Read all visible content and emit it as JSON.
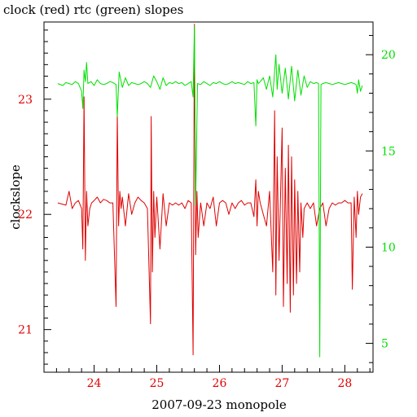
{
  "chart_data": {
    "type": "line",
    "title": "clock (red) rtc (green) slopes",
    "xlabel": "2007-09-23 monopole",
    "ylabel": "clockslope",
    "xlim": [
      23.2,
      28.45
    ],
    "ylim_left": [
      20.63,
      23.67
    ],
    "ylim_right": [
      3.5,
      21.7
    ],
    "x_ticks": [
      24,
      25,
      26,
      27,
      28
    ],
    "y_ticks_left": [
      21,
      22,
      23
    ],
    "y_ticks_right": [
      5,
      10,
      15,
      20
    ],
    "colors": {
      "clock": "#e00000",
      "rtc": "#00e000",
      "axes": "#000000"
    },
    "series": [
      {
        "name": "clock",
        "axis": "left",
        "color": "#e00000",
        "x": [
          23.42,
          23.55,
          23.6,
          23.65,
          23.7,
          23.75,
          23.8,
          23.82,
          23.84,
          23.86,
          23.88,
          23.9,
          23.93,
          23.96,
          24.0,
          24.05,
          24.1,
          24.15,
          24.2,
          24.25,
          24.3,
          24.35,
          24.37,
          24.39,
          24.41,
          24.43,
          24.45,
          24.5,
          24.55,
          24.6,
          24.65,
          24.7,
          24.75,
          24.8,
          24.85,
          24.9,
          24.91,
          24.93,
          24.95,
          24.97,
          25.0,
          25.05,
          25.1,
          25.15,
          25.2,
          25.25,
          25.3,
          25.35,
          25.4,
          25.45,
          25.5,
          25.55,
          25.58,
          25.6,
          25.62,
          25.64,
          25.66,
          25.7,
          25.75,
          25.8,
          25.85,
          25.9,
          25.95,
          26.0,
          26.05,
          26.1,
          26.15,
          26.2,
          26.25,
          26.3,
          26.35,
          26.4,
          26.45,
          26.5,
          26.55,
          26.58,
          26.6,
          26.62,
          26.65,
          26.7,
          26.75,
          26.8,
          26.85,
          26.88,
          26.9,
          26.92,
          26.95,
          27.0,
          27.02,
          27.05,
          27.08,
          27.1,
          27.13,
          27.15,
          27.18,
          27.2,
          27.23,
          27.25,
          27.28,
          27.3,
          27.33,
          27.35,
          27.4,
          27.45,
          27.5,
          27.55,
          27.6,
          27.65,
          27.7,
          27.75,
          27.8,
          27.85,
          27.9,
          27.95,
          28.0,
          28.05,
          28.1,
          28.12,
          28.15,
          28.18,
          28.2,
          28.22,
          28.25,
          28.28
        ],
        "y": [
          22.1,
          22.08,
          22.2,
          22.05,
          22.1,
          22.12,
          22.05,
          21.7,
          23.02,
          21.6,
          22.2,
          21.9,
          22.05,
          22.1,
          22.12,
          22.15,
          22.1,
          22.13,
          22.12,
          22.1,
          22.1,
          21.2,
          22.88,
          21.9,
          22.2,
          22.05,
          22.15,
          21.9,
          22.18,
          22.0,
          22.1,
          22.15,
          22.12,
          22.1,
          22.05,
          21.05,
          22.85,
          21.5,
          22.2,
          21.8,
          22.15,
          21.7,
          22.18,
          21.9,
          22.1,
          22.08,
          22.1,
          22.08,
          22.1,
          22.05,
          22.12,
          22.1,
          20.78,
          23.65,
          21.65,
          22.2,
          21.8,
          22.1,
          21.9,
          22.1,
          22.05,
          22.15,
          21.9,
          22.1,
          22.12,
          22.1,
          22.0,
          22.1,
          22.05,
          22.1,
          22.12,
          22.08,
          22.1,
          22.1,
          21.98,
          22.3,
          21.9,
          22.2,
          22.1,
          22.0,
          21.9,
          22.2,
          21.5,
          22.9,
          21.3,
          22.5,
          21.6,
          22.75,
          21.2,
          22.4,
          21.4,
          22.6,
          21.15,
          22.5,
          21.3,
          22.3,
          21.4,
          22.2,
          21.5,
          22.1,
          21.8,
          22.05,
          22.1,
          22.05,
          22.1,
          21.9,
          22.05,
          22.1,
          21.9,
          22.05,
          22.1,
          22.08,
          22.1,
          22.1,
          22.12,
          22.1,
          22.1,
          21.35,
          22.15,
          21.8,
          22.2,
          22.0,
          22.15,
          22.18
        ]
      },
      {
        "name": "rtc",
        "axis": "right",
        "color": "#00e000",
        "x": [
          23.42,
          23.5,
          23.55,
          23.6,
          23.65,
          23.7,
          23.75,
          23.8,
          23.82,
          23.84,
          23.86,
          23.88,
          23.9,
          23.95,
          24.0,
          24.05,
          24.1,
          24.15,
          24.2,
          24.25,
          24.3,
          24.35,
          24.37,
          24.4,
          24.45,
          24.5,
          24.55,
          24.6,
          24.65,
          24.7,
          24.75,
          24.8,
          24.85,
          24.9,
          24.95,
          25.0,
          25.05,
          25.1,
          25.15,
          25.2,
          25.25,
          25.3,
          25.35,
          25.4,
          25.45,
          25.5,
          25.55,
          25.58,
          25.6,
          25.62,
          25.65,
          25.7,
          25.75,
          25.8,
          25.85,
          25.9,
          25.95,
          26.0,
          26.05,
          26.1,
          26.15,
          26.2,
          26.25,
          26.3,
          26.35,
          26.4,
          26.45,
          26.5,
          26.55,
          26.58,
          26.6,
          26.62,
          26.65,
          26.7,
          26.75,
          26.8,
          26.85,
          26.9,
          26.92,
          26.95,
          27.0,
          27.05,
          27.1,
          27.15,
          27.2,
          27.25,
          27.3,
          27.35,
          27.4,
          27.45,
          27.5,
          27.55,
          27.58,
          27.6,
          27.62,
          27.65,
          27.7,
          27.75,
          27.8,
          27.85,
          27.9,
          27.95,
          28.0,
          28.05,
          28.1,
          28.15,
          28.18,
          28.2,
          28.22,
          28.25,
          28.28
        ],
        "y": [
          18.5,
          18.4,
          18.55,
          18.5,
          18.45,
          18.6,
          18.5,
          18.1,
          17.2,
          19.2,
          18.6,
          19.6,
          18.5,
          18.6,
          18.4,
          18.7,
          18.5,
          18.45,
          18.5,
          18.6,
          18.55,
          18.45,
          16.8,
          19.1,
          18.3,
          18.8,
          18.4,
          18.55,
          18.5,
          18.45,
          18.5,
          18.6,
          18.5,
          18.3,
          18.9,
          18.6,
          18.2,
          18.8,
          18.4,
          18.55,
          18.5,
          18.6,
          18.5,
          18.55,
          18.4,
          18.5,
          18.6,
          17.8,
          21.5,
          12.2,
          18.5,
          18.45,
          18.6,
          18.5,
          18.4,
          18.55,
          18.5,
          18.6,
          18.5,
          18.45,
          18.5,
          18.6,
          18.5,
          18.55,
          18.5,
          18.45,
          18.6,
          18.5,
          18.55,
          16.3,
          18.7,
          18.5,
          18.6,
          18.8,
          18.2,
          18.9,
          17.8,
          20.0,
          18.2,
          19.5,
          18.0,
          19.3,
          17.7,
          19.4,
          17.6,
          19.2,
          17.9,
          18.9,
          18.3,
          18.6,
          18.5,
          18.55,
          18.5,
          4.3,
          18.45,
          18.5,
          18.55,
          18.5,
          18.45,
          18.5,
          18.55,
          18.5,
          18.45,
          18.5,
          18.55,
          18.5,
          18.45,
          18.0,
          18.7,
          18.1,
          18.4
        ]
      }
    ]
  }
}
